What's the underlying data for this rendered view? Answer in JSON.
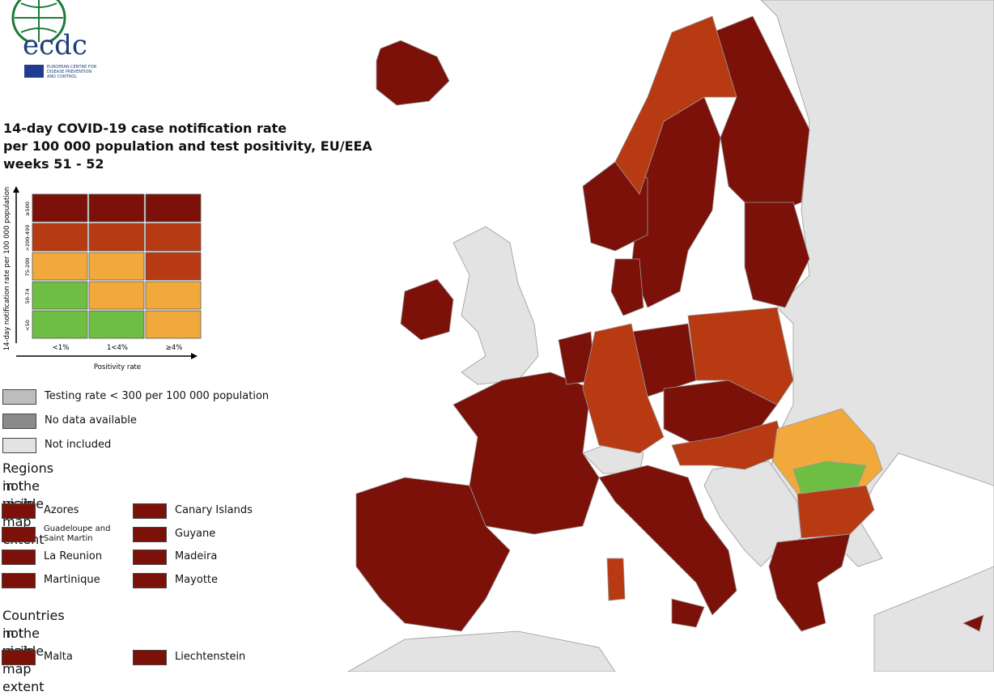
{
  "logo": {
    "text": "ecdc",
    "subtitle_lines": [
      "EUROPEAN CENTRE FOR",
      "DISEASE PREVENTION",
      "AND CONTROL"
    ]
  },
  "title_lines": [
    "14-day COVID-19 case notification rate",
    "per 100 000 population and test positivity, EU/EEA",
    "weeks 51 - 52"
  ],
  "matrix": {
    "y_label": "14-day notification rate per 100 000 population",
    "x_label": "Positivity rate",
    "row_labels": [
      "≥500",
      ">200-499",
      "75-200",
      "50-74",
      "<50"
    ],
    "column_labels": [
      "<1%",
      "1<4%",
      "≥4%"
    ],
    "cell_colors": [
      [
        "#7b1109",
        "#7b1109",
        "#7b1109"
      ],
      [
        "#b83a12",
        "#b83a12",
        "#b83a12"
      ],
      [
        "#f2a93b",
        "#f2a93b",
        "#b83a12"
      ],
      [
        "#6fbe44",
        "#f2a93b",
        "#f2a93b"
      ],
      [
        "#6fbe44",
        "#6fbe44",
        "#f2a93b"
      ]
    ]
  },
  "legend": [
    {
      "label": "Testing rate < 300 per 100 000 population",
      "color": "#bdbdbd"
    },
    {
      "label": "No data available",
      "color": "#8a8a8a"
    },
    {
      "label": "Not included",
      "color": "#e3e3e3"
    }
  ],
  "regions": {
    "title_lines": [
      "Regions not visible",
      "in the main map extent"
    ],
    "color": "#7b1109",
    "items": [
      "Azores",
      "Canary Islands",
      "Guadeloupe and Saint Martin",
      "Guyane",
      "La Reunion",
      "Madeira",
      "Martinique",
      "Mayotte"
    ]
  },
  "countries": {
    "title_lines": [
      "Countries not visible",
      "in the main map extent"
    ],
    "color": "#7b1109",
    "items": [
      "Malta",
      "Liechtenstein"
    ]
  }
}
